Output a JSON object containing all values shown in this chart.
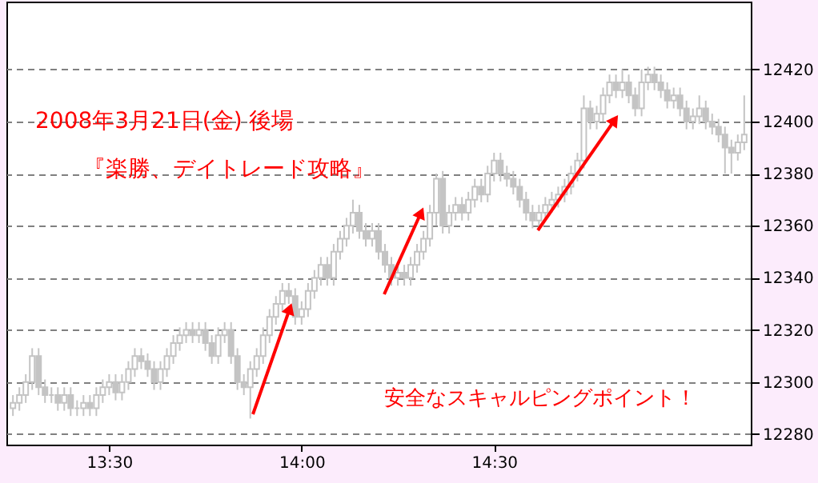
{
  "chart_data": {
    "type": "candlestick",
    "color": "#c4c4c4",
    "grid": "y",
    "annotations": [
      "2008年3月21日(金) 後場",
      "『楽勝、デイトレード攻略』",
      "安全なスキャルピングポイント！"
    ],
    "xlim": [
      13.233,
      15.167
    ],
    "xticks": [
      {
        "value": 13.5,
        "label": "13:30"
      },
      {
        "value": 14.0,
        "label": "14:00"
      },
      {
        "value": 14.5,
        "label": "14:30"
      }
    ],
    "ylim": [
      12276,
      12446
    ],
    "yticks": [
      12280,
      12300,
      12320,
      12340,
      12360,
      12380,
      12400,
      12420
    ],
    "x": [
      13.25,
      13.2667,
      13.2833,
      13.3,
      13.3167,
      13.3333,
      13.35,
      13.3667,
      13.3833,
      13.4,
      13.4167,
      13.4333,
      13.45,
      13.4667,
      13.4833,
      13.5,
      13.5167,
      13.5333,
      13.55,
      13.5667,
      13.5833,
      13.6,
      13.6167,
      13.6333,
      13.65,
      13.6667,
      13.6833,
      13.7,
      13.7167,
      13.7333,
      13.75,
      13.7667,
      13.7833,
      13.8,
      13.8167,
      13.8333,
      13.85,
      13.8667,
      13.8833,
      13.9,
      13.9167,
      13.9333,
      13.95,
      13.9667,
      13.9833,
      14.0,
      14.0167,
      14.0333,
      14.05,
      14.0667,
      14.0833,
      14.1,
      14.1167,
      14.1333,
      14.15,
      14.1667,
      14.1833,
      14.2,
      14.2167,
      14.2333,
      14.25,
      14.2667,
      14.2833,
      14.3,
      14.3167,
      14.3333,
      14.35,
      14.3667,
      14.3833,
      14.4,
      14.4167,
      14.4333,
      14.45,
      14.4667,
      14.4833,
      14.5,
      14.5167,
      14.5333,
      14.55,
      14.5667,
      14.5833,
      14.6,
      14.6167,
      14.6333,
      14.65,
      14.6667,
      14.6833,
      14.7,
      14.7167,
      14.7333,
      14.75,
      14.7667,
      14.7833,
      14.8,
      14.8167,
      14.8333,
      14.85,
      14.8667,
      14.8833,
      14.9,
      14.9167,
      14.9333,
      14.95,
      14.9667,
      14.9833,
      15.0,
      15.0167,
      15.0333,
      15.05,
      15.0667,
      15.0833,
      15.1,
      15.1167,
      15.1333,
      15.15
    ],
    "ohlc": [
      [
        12290,
        12295,
        12287,
        12292
      ],
      [
        12292,
        12298,
        12289,
        12295
      ],
      [
        12295,
        12303,
        12292,
        12300
      ],
      [
        12300,
        12313,
        12297,
        12310
      ],
      [
        12310,
        12313,
        12295,
        12298
      ],
      [
        12298,
        12301,
        12292,
        12295
      ],
      [
        12295,
        12298,
        12292,
        12295
      ],
      [
        12295,
        12298,
        12289,
        12292
      ],
      [
        12292,
        12298,
        12289,
        12295
      ],
      [
        12295,
        12298,
        12287,
        12290
      ],
      [
        12290,
        12293,
        12287,
        12290
      ],
      [
        12290,
        12295,
        12287,
        12292
      ],
      [
        12292,
        12295,
        12287,
        12290
      ],
      [
        12290,
        12298,
        12287,
        12295
      ],
      [
        12295,
        12301,
        12292,
        12298
      ],
      [
        12298,
        12303,
        12295,
        12300
      ],
      [
        12300,
        12303,
        12293,
        12296
      ],
      [
        12296,
        12303,
        12293,
        12300
      ],
      [
        12300,
        12308,
        12297,
        12305
      ],
      [
        12305,
        12313,
        12302,
        12310
      ],
      [
        12310,
        12313,
        12305,
        12308
      ],
      [
        12308,
        12311,
        12302,
        12305
      ],
      [
        12305,
        12308,
        12297,
        12300
      ],
      [
        12300,
        12308,
        12297,
        12305
      ],
      [
        12305,
        12313,
        12302,
        12310
      ],
      [
        12310,
        12318,
        12307,
        12315
      ],
      [
        12315,
        12321,
        12312,
        12318
      ],
      [
        12318,
        12323,
        12315,
        12320
      ],
      [
        12320,
        12323,
        12315,
        12318
      ],
      [
        12318,
        12323,
        12315,
        12320
      ],
      [
        12320,
        12323,
        12312,
        12315
      ],
      [
        12315,
        12318,
        12307,
        12310
      ],
      [
        12310,
        12321,
        12307,
        12318
      ],
      [
        12318,
        12323,
        12315,
        12320
      ],
      [
        12320,
        12323,
        12307,
        12310
      ],
      [
        12310,
        12313,
        12297,
        12300
      ],
      [
        12300,
        12303,
        12295,
        12298
      ],
      [
        12298,
        12308,
        12286,
        12305
      ],
      [
        12305,
        12313,
        12302,
        12310
      ],
      [
        12310,
        12321,
        12307,
        12318
      ],
      [
        12318,
        12328,
        12315,
        12325
      ],
      [
        12325,
        12333,
        12322,
        12330
      ],
      [
        12330,
        12338,
        12327,
        12335
      ],
      [
        12335,
        12338,
        12330,
        12333
      ],
      [
        12333,
        12336,
        12322,
        12325
      ],
      [
        12325,
        12331,
        12322,
        12328
      ],
      [
        12328,
        12338,
        12325,
        12335
      ],
      [
        12335,
        12343,
        12332,
        12340
      ],
      [
        12340,
        12348,
        12337,
        12345
      ],
      [
        12345,
        12348,
        12337,
        12340
      ],
      [
        12340,
        12353,
        12337,
        12350
      ],
      [
        12350,
        12358,
        12347,
        12355
      ],
      [
        12355,
        12363,
        12352,
        12360
      ],
      [
        12360,
        12370,
        12357,
        12365
      ],
      [
        12365,
        12368,
        12355,
        12358
      ],
      [
        12358,
        12361,
        12352,
        12355
      ],
      [
        12355,
        12361,
        12352,
        12358
      ],
      [
        12358,
        12361,
        12347,
        12350
      ],
      [
        12350,
        12353,
        12342,
        12345
      ],
      [
        12345,
        12348,
        12337,
        12340
      ],
      [
        12340,
        12345,
        12337,
        12342
      ],
      [
        12342,
        12345,
        12337,
        12340
      ],
      [
        12340,
        12348,
        12337,
        12345
      ],
      [
        12345,
        12353,
        12342,
        12350
      ],
      [
        12350,
        12358,
        12347,
        12355
      ],
      [
        12355,
        12368,
        12352,
        12365
      ],
      [
        12365,
        12380,
        12360,
        12378
      ],
      [
        12378,
        12381,
        12357,
        12360
      ],
      [
        12360,
        12368,
        12357,
        12365
      ],
      [
        12365,
        12371,
        12362,
        12368
      ],
      [
        12368,
        12371,
        12362,
        12365
      ],
      [
        12365,
        12373,
        12362,
        12370
      ],
      [
        12370,
        12378,
        12367,
        12375
      ],
      [
        12375,
        12378,
        12369,
        12372
      ],
      [
        12372,
        12383,
        12369,
        12380
      ],
      [
        12380,
        12388,
        12377,
        12385
      ],
      [
        12385,
        12388,
        12377,
        12380
      ],
      [
        12380,
        12383,
        12375,
        12378
      ],
      [
        12378,
        12381,
        12372,
        12375
      ],
      [
        12375,
        12378,
        12367,
        12370
      ],
      [
        12370,
        12373,
        12362,
        12365
      ],
      [
        12365,
        12368,
        12359,
        12362
      ],
      [
        12362,
        12368,
        12359,
        12365
      ],
      [
        12365,
        12371,
        12362,
        12368
      ],
      [
        12368,
        12373,
        12365,
        12370
      ],
      [
        12370,
        12375,
        12367,
        12372
      ],
      [
        12372,
        12378,
        12369,
        12375
      ],
      [
        12375,
        12383,
        12372,
        12380
      ],
      [
        12380,
        12388,
        12377,
        12385
      ],
      [
        12385,
        12410,
        12382,
        12405
      ],
      [
        12405,
        12408,
        12397,
        12400
      ],
      [
        12400,
        12406,
        12397,
        12403
      ],
      [
        12403,
        12413,
        12400,
        12410
      ],
      [
        12410,
        12418,
        12407,
        12415
      ],
      [
        12415,
        12418,
        12409,
        12412
      ],
      [
        12412,
        12420,
        12409,
        12415
      ],
      [
        12415,
        12418,
        12407,
        12410
      ],
      [
        12410,
        12413,
        12402,
        12405
      ],
      [
        12405,
        12420,
        12402,
        12415
      ],
      [
        12415,
        12421,
        12412,
        12418
      ],
      [
        12418,
        12421,
        12412,
        12415
      ],
      [
        12415,
        12418,
        12409,
        12412
      ],
      [
        12412,
        12415,
        12405,
        12408
      ],
      [
        12408,
        12413,
        12405,
        12410
      ],
      [
        12410,
        12413,
        12402,
        12405
      ],
      [
        12405,
        12408,
        12397,
        12400
      ],
      [
        12400,
        12405,
        12397,
        12402
      ],
      [
        12402,
        12410,
        12399,
        12405
      ],
      [
        12405,
        12408,
        12397,
        12400
      ],
      [
        12400,
        12403,
        12395,
        12398
      ],
      [
        12398,
        12401,
        12392,
        12395
      ],
      [
        12395,
        12398,
        12380,
        12390
      ],
      [
        12390,
        12393,
        12380,
        12388
      ],
      [
        12388,
        12395,
        12385,
        12392
      ],
      [
        12392,
        12410,
        12389,
        12395
      ]
    ]
  }
}
